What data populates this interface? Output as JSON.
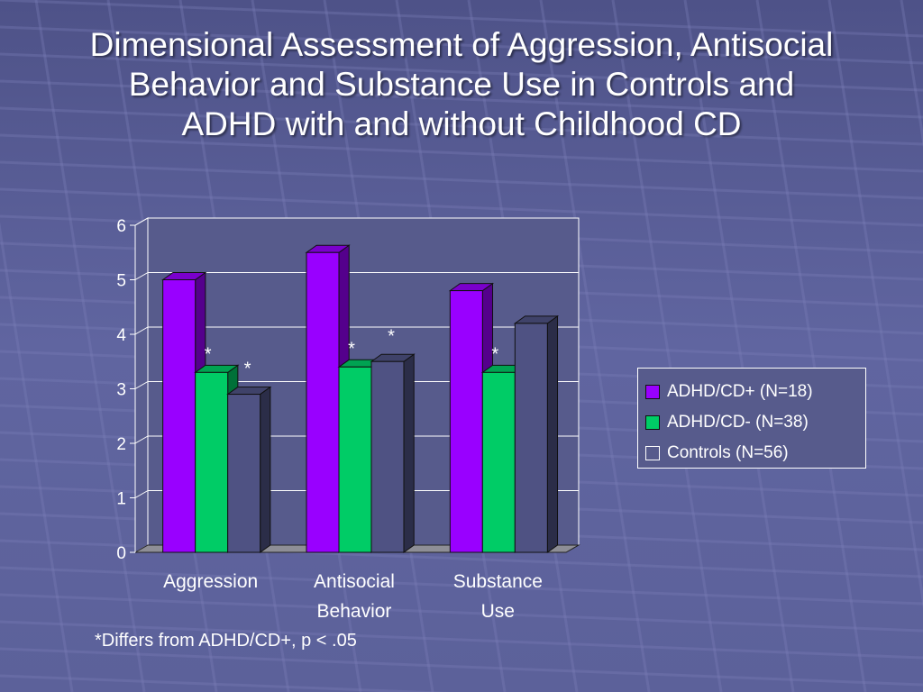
{
  "title": {
    "line1": "Dimensional Assessment of Aggression, Antisocial",
    "line2": "Behavior and Substance Use in Controls and",
    "line3": "ADHD with and without Childhood CD"
  },
  "chart_data": {
    "type": "bar",
    "title": "Dimensional Assessment of Aggression, Antisocial Behavior and Substance Use in Controls and ADHD with and without Childhood CD",
    "categories": [
      [
        "Aggression"
      ],
      [
        "Antisocial",
        "Behavior"
      ],
      [
        "Substance",
        "Use"
      ]
    ],
    "series": [
      {
        "name": "ADHD/CD+ (N=18)",
        "color": "#9900ff",
        "values": [
          5.0,
          5.5,
          4.8
        ],
        "marks": [
          "",
          "",
          ""
        ]
      },
      {
        "name": "ADHD/CD- (N=38)",
        "color": "#00cc66",
        "values": [
          3.3,
          3.4,
          3.3
        ],
        "marks": [
          "*",
          "*",
          "*"
        ]
      },
      {
        "name": "Controls (N=56)",
        "color": "#4f5283",
        "values": [
          2.9,
          3.5,
          4.2
        ],
        "marks": [
          "*",
          "*",
          ""
        ]
      }
    ],
    "yticks": [
      0,
      1,
      2,
      3,
      4,
      5,
      6
    ],
    "ylim": [
      0,
      6
    ],
    "grid": true,
    "legend": "right",
    "xlabel": "",
    "ylabel": ""
  },
  "footnote": "*Differs from ADHD/CD+, p < .05"
}
